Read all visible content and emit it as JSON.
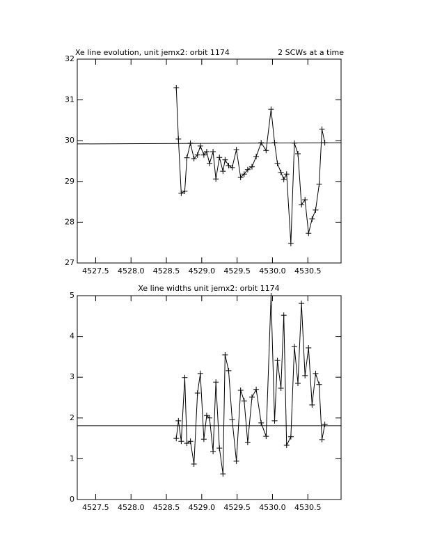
{
  "chart_data": [
    {
      "type": "line",
      "title": "Xe line evolution, unit jemx2: orbit 1174",
      "annotation": "2 SCWs at a time",
      "xlim": [
        4527.24,
        4530.97
      ],
      "xticks": [
        4527.5,
        {
          "value": 4528,
          "label": "4528.0"
        },
        4528.5,
        {
          "value": 4529,
          "label": "4529.0"
        },
        4529.5,
        {
          "value": 4530,
          "label": "4530.0"
        },
        4530.5
      ],
      "ylim": [
        27,
        32
      ],
      "yticks": [
        27,
        28,
        29,
        30,
        31,
        32
      ],
      "series": [
        {
          "color": "#000000",
          "marker": "plus",
          "x": [
            4528.64,
            4528.67,
            4528.71,
            4528.76,
            4528.79,
            4528.84,
            4528.89,
            4528.94,
            4528.98,
            4529.03,
            4529.07,
            4529.11,
            4529.16,
            4529.2,
            4529.25,
            4529.3,
            4529.33,
            4529.38,
            4529.43,
            4529.49,
            4529.55,
            4529.6,
            4529.65,
            4529.71,
            4529.77,
            4529.84,
            4529.91,
            4529.98,
            4530.03,
            4530.07,
            4530.12,
            4530.16,
            4530.2,
            4530.26,
            4530.31,
            4530.36,
            4530.41,
            4530.46,
            4530.51,
            4530.56,
            4530.61,
            4530.66,
            4530.7,
            4530.74
          ],
          "values": [
            31.3,
            30.04,
            28.71,
            28.76,
            29.58,
            29.94,
            29.56,
            29.65,
            29.87,
            29.65,
            29.73,
            29.44,
            29.73,
            29.06,
            29.59,
            29.25,
            29.53,
            29.39,
            29.34,
            29.78,
            29.1,
            29.18,
            29.29,
            29.36,
            29.61,
            29.95,
            29.76,
            30.77,
            29.95,
            29.44,
            29.22,
            29.05,
            29.18,
            27.48,
            29.94,
            29.68,
            28.43,
            28.55,
            27.73,
            28.08,
            28.3,
            28.93,
            30.28,
            29.95
          ]
        },
        {
          "color": "#000000",
          "x": [
            4527.24,
            4530.97
          ],
          "values": [
            29.92,
            29.95
          ]
        }
      ]
    },
    {
      "type": "line",
      "title": "Xe line widths unit jemx2: orbit 1174",
      "xlim": [
        4527.24,
        4530.97
      ],
      "xticks": [
        4527.5,
        {
          "value": 4528,
          "label": "4528.0"
        },
        4528.5,
        {
          "value": 4529,
          "label": "4529.0"
        },
        4529.5,
        {
          "value": 4530,
          "label": "4530.0"
        },
        4530.5
      ],
      "ylim": [
        0,
        5
      ],
      "yticks": [
        0,
        1,
        2,
        3,
        4,
        5
      ],
      "series": [
        {
          "color": "#000000",
          "marker": "plus",
          "x": [
            4528.64,
            4528.67,
            4528.71,
            4528.76,
            4528.79,
            4528.84,
            4528.89,
            4528.94,
            4528.98,
            4529.03,
            4529.07,
            4529.11,
            4529.16,
            4529.2,
            4529.25,
            4529.3,
            4529.33,
            4529.38,
            4529.43,
            4529.49,
            4529.55,
            4529.6,
            4529.65,
            4529.71,
            4529.77,
            4529.84,
            4529.91,
            4529.98,
            4530.03,
            4530.07,
            4530.12,
            4530.16,
            4530.2,
            4530.26,
            4530.31,
            4530.36,
            4530.41,
            4530.46,
            4530.51,
            4530.56,
            4530.61,
            4530.66,
            4530.7,
            4530.74
          ],
          "values": [
            1.5,
            1.93,
            1.43,
            2.99,
            1.38,
            1.43,
            0.87,
            2.61,
            3.09,
            1.48,
            2.06,
            2.0,
            1.18,
            2.88,
            1.26,
            0.63,
            3.55,
            3.16,
            1.96,
            0.94,
            2.68,
            2.42,
            1.4,
            2.51,
            2.7,
            1.88,
            1.55,
            5.0,
            1.93,
            3.41,
            2.73,
            4.52,
            1.33,
            1.54,
            3.75,
            2.85,
            4.81,
            3.04,
            3.72,
            2.32,
            3.09,
            2.82,
            1.47,
            1.84
          ]
        },
        {
          "color": "#000000",
          "x": [
            4527.24,
            4530.97
          ],
          "values": [
            1.81,
            1.81
          ]
        }
      ]
    }
  ]
}
